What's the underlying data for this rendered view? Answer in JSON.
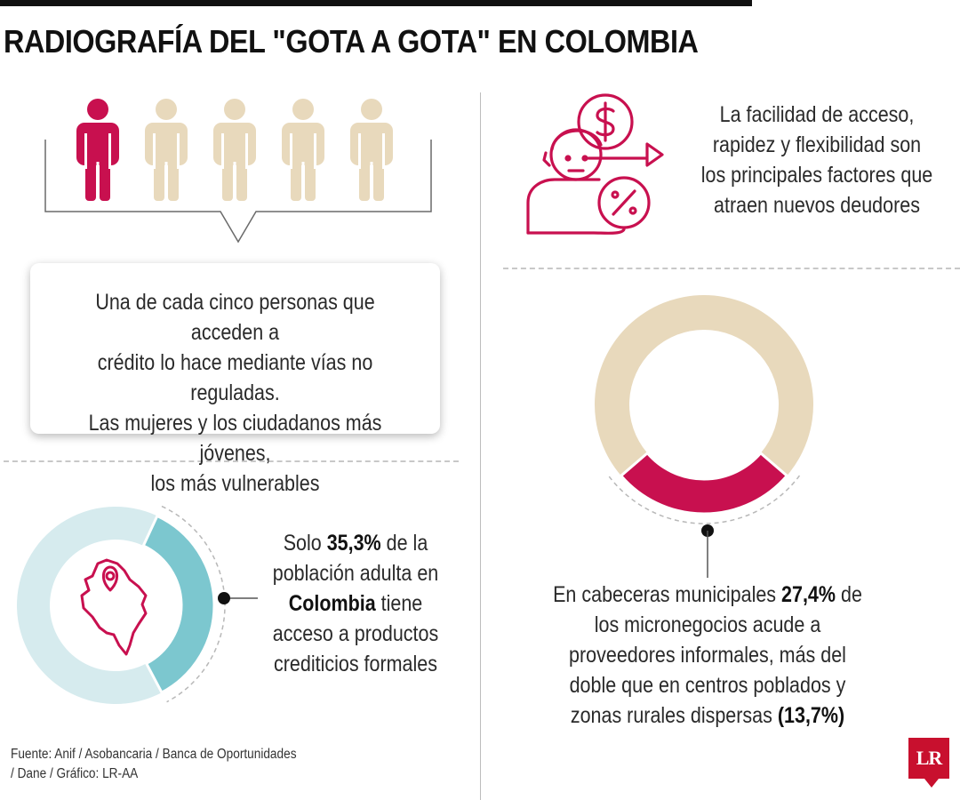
{
  "title": "RADIOGRAFÍA DEL \"GOTA A GOTA\" EN COLOMBIA",
  "colors": {
    "accent": "#c8104f",
    "beige": "#e8d9bc",
    "teal": "#7cc7cf",
    "teal_light": "#d6ebee"
  },
  "people_block": {
    "icons": [
      "person-icon",
      "person-icon",
      "person-icon",
      "person-icon",
      "person-icon"
    ],
    "highlighted_count": 1,
    "total_count": 5,
    "text_lines": [
      "Una de cada cinco personas que acceden a",
      "crédito lo hace mediante vías no reguladas.",
      "Las mujeres y los ciudadanos más jóvenes,",
      "los más vulnerables"
    ]
  },
  "factors_block": {
    "icon": "borrower-money-icon",
    "text_lines": [
      "La facilidad de acceso,",
      "rapidez y flexibilidad son",
      "los principales factores que",
      "atraen nuevos deudores"
    ]
  },
  "access_block": {
    "icon": "colombia-map-icon",
    "text": {
      "l1_pre": "Solo ",
      "l1_bold": "35,3%",
      "l1_post": " de la",
      "l2": "población adulta en",
      "l3_bold": "Colombia",
      "l3_post": " tiene",
      "l4": "acceso a productos",
      "l5": "crediticios formales"
    }
  },
  "micro_block": {
    "text": {
      "l1_pre": "En cabeceras municipales ",
      "l1_bold": "27,4%",
      "l1_post": " de",
      "l2": "los micronegocios acude a",
      "l3": "proveedores informales, más del",
      "l4": "doble que en centros poblados y",
      "l5_pre": "zonas rurales dispersas ",
      "l5_bold": "(13,7%)"
    }
  },
  "source_lines": [
    "Fuente: Anif / Asobancaria / Banca de Oportunidades",
    "/ Dane / Gráfico: LR-AA"
  ],
  "logo_text": "LR",
  "chart_data": [
    {
      "type": "pie",
      "variant": "donut",
      "segments": [
        {
          "label": "acceso a productos crediticios formales",
          "value": 35.3,
          "color": "#7cc7cf"
        },
        {
          "label": "",
          "value": 64.7,
          "color": "#d6ebee"
        }
      ]
    },
    {
      "type": "pie",
      "variant": "donut",
      "segments": [
        {
          "label": "micronegocios que acuden a proveedores informales (cabeceras municipales)",
          "value": 27.4,
          "color": "#c8104f"
        },
        {
          "label": "",
          "value": 72.6,
          "color": "#e8d9bc"
        }
      ]
    }
  ]
}
